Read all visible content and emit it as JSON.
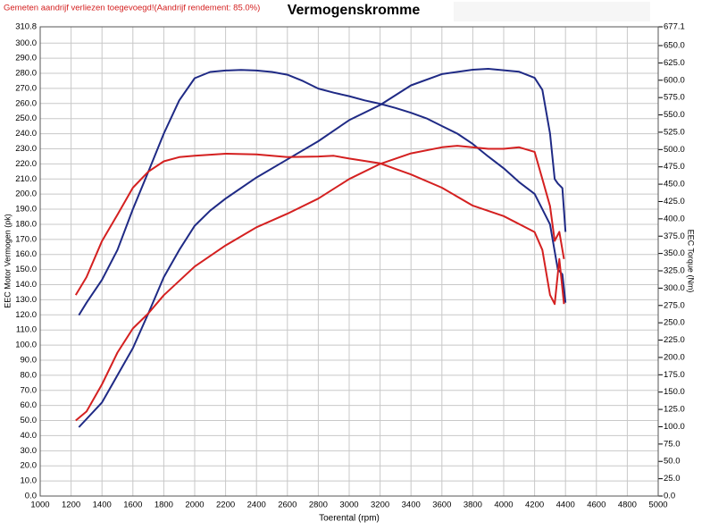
{
  "chart_data": {
    "type": "line",
    "title": "Vermogenskromme",
    "annotation": "Gemeten aandrijf verliezen toegevoegd!(Aandrijf rendement: 85.0%)",
    "xlabel": "Toerental (rpm)",
    "ylabel": "EEC Motor Vermogen (pk)",
    "y2label": "EEC Torque (Nm)",
    "xlim": [
      1000,
      5000
    ],
    "xticks": [
      1000,
      1200,
      1400,
      1600,
      1800,
      2000,
      2200,
      2400,
      2600,
      2800,
      3000,
      3200,
      3400,
      3600,
      3800,
      4000,
      4200,
      4400,
      4600,
      4800,
      5000
    ],
    "ylim": [
      0,
      310.8
    ],
    "yticks": [
      {
        "value": 0,
        "label": "0.0"
      },
      {
        "value": 10,
        "label": "10.0"
      },
      {
        "value": 20,
        "label": "20.0"
      },
      {
        "value": 30,
        "label": "30.0"
      },
      {
        "value": 40,
        "label": "40.0"
      },
      {
        "value": 50,
        "label": "50.0"
      },
      {
        "value": 60,
        "label": "60.0"
      },
      {
        "value": 70,
        "label": "70.0"
      },
      {
        "value": 80,
        "label": "80.0"
      },
      {
        "value": 90,
        "label": "90.0"
      },
      {
        "value": 100,
        "label": "100.0"
      },
      {
        "value": 110,
        "label": "110.0"
      },
      {
        "value": 120,
        "label": "120.0"
      },
      {
        "value": 130,
        "label": "130.0"
      },
      {
        "value": 140,
        "label": "140.0"
      },
      {
        "value": 150,
        "label": "150.0"
      },
      {
        "value": 160,
        "label": "160.0"
      },
      {
        "value": 170,
        "label": "170.0"
      },
      {
        "value": 180,
        "label": "180.0"
      },
      {
        "value": 190,
        "label": "190.0"
      },
      {
        "value": 200,
        "label": "200.0"
      },
      {
        "value": 210,
        "label": "210.0"
      },
      {
        "value": 220,
        "label": "220.0"
      },
      {
        "value": 230,
        "label": "230.0"
      },
      {
        "value": 240,
        "label": "240.0"
      },
      {
        "value": 250,
        "label": "250.0"
      },
      {
        "value": 260,
        "label": "260.0"
      },
      {
        "value": 270,
        "label": "270.0"
      },
      {
        "value": 280,
        "label": "280.0"
      },
      {
        "value": 290,
        "label": "290.0"
      },
      {
        "value": 300,
        "label": "300.0"
      },
      {
        "value": 310.8,
        "label": "310.8"
      }
    ],
    "y2lim": [
      0,
      677.1
    ],
    "y2ticks": [
      {
        "value": 0,
        "label": "0.0"
      },
      {
        "value": 25,
        "label": "25.0"
      },
      {
        "value": 50,
        "label": "50.0"
      },
      {
        "value": 75,
        "label": "75.0"
      },
      {
        "value": 100,
        "label": "100.0"
      },
      {
        "value": 125,
        "label": "125.0"
      },
      {
        "value": 150,
        "label": "150.0"
      },
      {
        "value": 175,
        "label": "175.0"
      },
      {
        "value": 200,
        "label": "200.0"
      },
      {
        "value": 225,
        "label": "225.0"
      },
      {
        "value": 250,
        "label": "250.0"
      },
      {
        "value": 275,
        "label": "275.0"
      },
      {
        "value": 300,
        "label": "300.0"
      },
      {
        "value": 325,
        "label": "325.0"
      },
      {
        "value": 350,
        "label": "350.0"
      },
      {
        "value": 375,
        "label": "375.0"
      },
      {
        "value": 400,
        "label": "400.0"
      },
      {
        "value": 425,
        "label": "425.0"
      },
      {
        "value": 450,
        "label": "450.0"
      },
      {
        "value": 475,
        "label": "475.0"
      },
      {
        "value": 500,
        "label": "500.0"
      },
      {
        "value": 525,
        "label": "525.0"
      },
      {
        "value": 550,
        "label": "550.0"
      },
      {
        "value": 575,
        "label": "575.0"
      },
      {
        "value": 600,
        "label": "600.0"
      },
      {
        "value": 625,
        "label": "625.0"
      },
      {
        "value": 650,
        "label": "650.0"
      },
      {
        "value": 677.1,
        "label": "677.1"
      }
    ],
    "grid": true,
    "series": [
      {
        "color": "#1f2a85",
        "axis": "y",
        "x": [
          1250,
          1400,
          1500,
          1600,
          1700,
          1800,
          1900,
          2000,
          2100,
          2200,
          2400,
          2600,
          2800,
          3000,
          3200,
          3400,
          3600,
          3800,
          3900,
          4000,
          4100,
          4200,
          4250,
          4300,
          4330,
          4350,
          4380,
          4400
        ],
        "values": [
          45.6,
          62,
          80,
          98,
          121,
          145,
          163,
          179,
          189,
          197,
          211,
          223,
          235,
          249,
          259,
          272,
          279.5,
          282.4,
          283,
          282,
          281,
          277,
          269,
          240,
          210,
          207,
          204,
          175
        ]
      },
      {
        "color": "#1f2a85",
        "axis": "y2",
        "x": [
          1250,
          1300,
          1400,
          1500,
          1600,
          1700,
          1800,
          1900,
          2000,
          2100,
          2200,
          2300,
          2400,
          2500,
          2600,
          2700,
          2800,
          2900,
          3000,
          3100,
          3200,
          3300,
          3400,
          3500,
          3600,
          3700,
          3800,
          3900,
          4000,
          4100,
          4200,
          4300,
          4350,
          4380,
          4400
        ],
        "values": [
          261,
          279,
          312,
          355,
          414,
          468,
          523,
          571,
          603,
          612,
          614,
          615,
          614,
          612,
          608,
          599,
          588,
          582,
          577,
          571,
          566,
          560,
          553,
          545,
          534,
          523,
          508,
          490,
          473,
          453,
          436,
          392,
          327,
          320,
          279
        ]
      },
      {
        "color": "#d42020",
        "axis": "y",
        "x": [
          1230,
          1300,
          1400,
          1500,
          1600,
          1700,
          1800,
          2000,
          2200,
          2400,
          2600,
          2800,
          3000,
          3200,
          3400,
          3600,
          3700,
          3900,
          4000,
          4100,
          4200,
          4250,
          4300,
          4330,
          4360,
          4390
        ],
        "values": [
          50,
          56,
          74,
          95,
          111,
          121,
          133,
          152,
          166,
          178,
          187,
          197,
          210,
          220,
          227,
          231,
          232,
          230,
          230,
          231,
          228,
          210,
          192,
          169,
          175,
          157
        ]
      },
      {
        "color": "#d42020",
        "axis": "y2",
        "x": [
          1230,
          1300,
          1400,
          1500,
          1600,
          1700,
          1800,
          1900,
          2000,
          2200,
          2400,
          2600,
          2800,
          2900,
          3000,
          3200,
          3400,
          3600,
          3800,
          4000,
          4200,
          4250,
          4300,
          4330,
          4360,
          4390
        ],
        "values": [
          290,
          316,
          368,
          406,
          445,
          468,
          483,
          489,
          491,
          494,
          493,
          489,
          490,
          491,
          487,
          480,
          464,
          445,
          419,
          404,
          381,
          355,
          290,
          277,
          342,
          277
        ]
      }
    ]
  }
}
